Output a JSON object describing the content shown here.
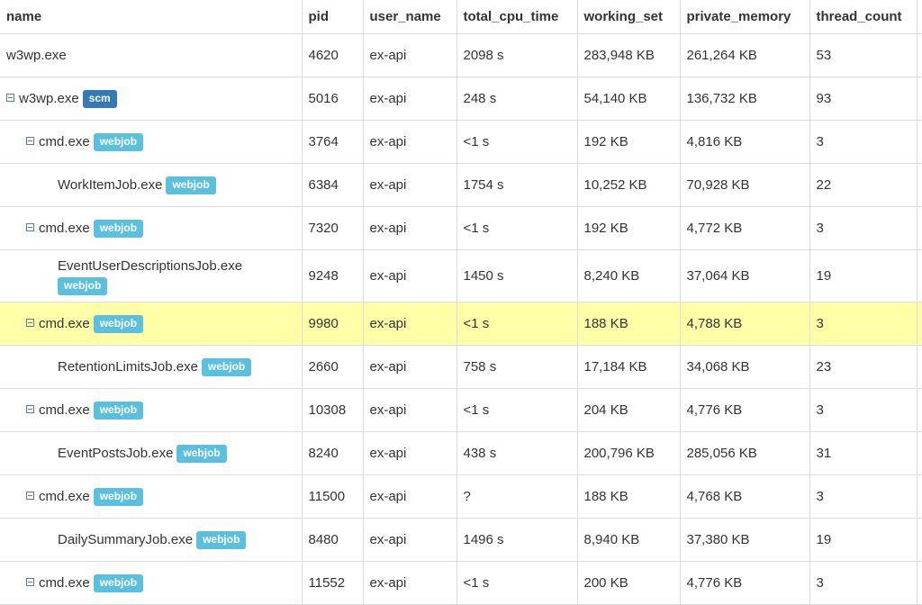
{
  "columns": [
    "name",
    "pid",
    "user_name",
    "total_cpu_time",
    "working_set",
    "private_memory",
    "thread_count",
    ""
  ],
  "colors": {
    "scm": "#337ab7",
    "webjob": "#5bc0de",
    "highlight": "#ffffa8"
  },
  "rows": [
    {
      "name": "w3wp.exe",
      "level": 0,
      "toggle": false,
      "badge": null,
      "pid": "4620",
      "user_name": "ex-api",
      "total_cpu_time": "2098 s",
      "working_set": "283,948 KB",
      "private_memory": "261,264 KB",
      "thread_count": "53"
    },
    {
      "name": "w3wp.exe",
      "level": 0,
      "toggle": true,
      "badge": "scm",
      "pid": "5016",
      "user_name": "ex-api",
      "total_cpu_time": "248 s",
      "working_set": "54,140 KB",
      "private_memory": "136,732 KB",
      "thread_count": "93"
    },
    {
      "name": "cmd.exe",
      "level": 1,
      "toggle": true,
      "badge": "webjob",
      "pid": "3764",
      "user_name": "ex-api",
      "total_cpu_time": "<1 s",
      "working_set": "192 KB",
      "private_memory": "4,816 KB",
      "thread_count": "3"
    },
    {
      "name": "WorkItemJob.exe",
      "level": 2,
      "toggle": false,
      "badge": "webjob",
      "pid": "6384",
      "user_name": "ex-api",
      "total_cpu_time": "1754 s",
      "working_set": "10,252 KB",
      "private_memory": "70,928 KB",
      "thread_count": "22"
    },
    {
      "name": "cmd.exe",
      "level": 1,
      "toggle": true,
      "badge": "webjob",
      "pid": "7320",
      "user_name": "ex-api",
      "total_cpu_time": "<1 s",
      "working_set": "192 KB",
      "private_memory": "4,772 KB",
      "thread_count": "3"
    },
    {
      "name": "EventUserDescriptionsJob.exe",
      "level": 2,
      "toggle": false,
      "badge": "webjob",
      "wrap": true,
      "pid": "9248",
      "user_name": "ex-api",
      "total_cpu_time": "1450 s",
      "working_set": "8,240 KB",
      "private_memory": "37,064 KB",
      "thread_count": "19"
    },
    {
      "name": "cmd.exe",
      "level": 1,
      "toggle": true,
      "badge": "webjob",
      "highlight": true,
      "pid": "9980",
      "user_name": "ex-api",
      "total_cpu_time": "<1 s",
      "working_set": "188 KB",
      "private_memory": "4,788 KB",
      "thread_count": "3"
    },
    {
      "name": "RetentionLimitsJob.exe",
      "level": 2,
      "toggle": false,
      "badge": "webjob",
      "pid": "2660",
      "user_name": "ex-api",
      "total_cpu_time": "758 s",
      "working_set": "17,184 KB",
      "private_memory": "34,068 KB",
      "thread_count": "23"
    },
    {
      "name": "cmd.exe",
      "level": 1,
      "toggle": true,
      "badge": "webjob",
      "pid": "10308",
      "user_name": "ex-api",
      "total_cpu_time": "<1 s",
      "working_set": "204 KB",
      "private_memory": "4,776 KB",
      "thread_count": "3"
    },
    {
      "name": "EventPostsJob.exe",
      "level": 2,
      "toggle": false,
      "badge": "webjob",
      "pid": "8240",
      "user_name": "ex-api",
      "total_cpu_time": "438 s",
      "working_set": "200,796 KB",
      "private_memory": "285,056 KB",
      "thread_count": "31"
    },
    {
      "name": "cmd.exe",
      "level": 1,
      "toggle": true,
      "badge": "webjob",
      "pid": "11500",
      "user_name": "ex-api",
      "total_cpu_time": "?",
      "working_set": "188 KB",
      "private_memory": "4,768 KB",
      "thread_count": "3"
    },
    {
      "name": "DailySummaryJob.exe",
      "level": 2,
      "toggle": false,
      "badge": "webjob",
      "pid": "8480",
      "user_name": "ex-api",
      "total_cpu_time": "1496 s",
      "working_set": "8,940 KB",
      "private_memory": "37,380 KB",
      "thread_count": "19"
    },
    {
      "name": "cmd.exe",
      "level": 1,
      "toggle": true,
      "badge": "webjob",
      "pid": "11552",
      "user_name": "ex-api",
      "total_cpu_time": "<1 s",
      "working_set": "200 KB",
      "private_memory": "4,776 KB",
      "thread_count": "3"
    }
  ]
}
